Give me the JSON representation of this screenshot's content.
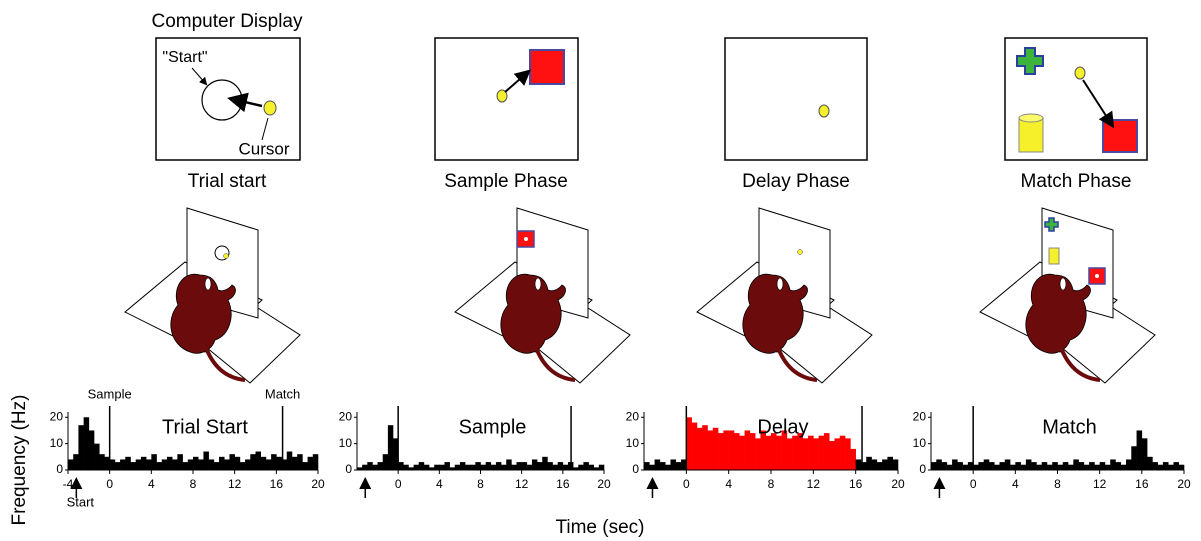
{
  "display": {
    "title": "Computer Display",
    "start_label": "\"Start\"",
    "cursor_label": "Cursor"
  },
  "panels": [
    "Trial start",
    "Sample Phase",
    "Delay Phase",
    "Match Phase"
  ],
  "axis_labels": {
    "y": "Frequency (Hz)",
    "x": "Time (sec)"
  },
  "chart_data": [
    {
      "type": "histogram",
      "title": "Trial Start",
      "color": "#000000",
      "bins": [
        -4,
        -3.5,
        -3,
        -2.5,
        -2,
        -1.5,
        -1,
        -0.5,
        0,
        0.5,
        1,
        1.5,
        2,
        2.5,
        3,
        3.5,
        4,
        4.5,
        5,
        5.5,
        6,
        6.5,
        7,
        7.5,
        8,
        8.5,
        9,
        9.5,
        10,
        10.5,
        11,
        11.5,
        12,
        12.5,
        13,
        13.5,
        14,
        14.5,
        15,
        15.5,
        16,
        16.5,
        17,
        17.5,
        18,
        18.5,
        19,
        19.5,
        20
      ],
      "values": [
        4,
        6,
        17,
        20,
        15,
        10,
        6,
        5,
        4,
        3,
        4,
        5,
        3,
        4,
        5,
        4,
        6,
        3,
        4,
        5,
        4,
        6,
        3,
        4,
        5,
        4,
        7,
        4,
        3,
        5,
        4,
        6,
        5,
        3,
        4,
        6,
        7,
        5,
        4,
        6,
        5,
        4,
        7,
        5,
        6,
        3,
        5,
        6
      ],
      "xlim": [
        -4,
        20
      ],
      "xticks": [
        -4,
        0,
        4,
        8,
        12,
        16,
        20
      ],
      "ylim": [
        0,
        22
      ],
      "yticks": [
        0,
        10,
        20
      ],
      "events": [
        {
          "name": "Start",
          "x": -3.2
        },
        {
          "name": "Sample",
          "x": 0
        },
        {
          "name": "Match",
          "x": 16.6
        }
      ]
    },
    {
      "type": "histogram",
      "title": "Sample",
      "color": "#000000",
      "bins": [
        -4,
        -3.5,
        -3,
        -2.5,
        -2,
        -1.5,
        -1,
        -0.5,
        0,
        0.5,
        1,
        1.5,
        2,
        2.5,
        3,
        3.5,
        4,
        4.5,
        5,
        5.5,
        6,
        6.5,
        7,
        7.5,
        8,
        8.5,
        9,
        9.5,
        10,
        10.5,
        11,
        11.5,
        12,
        12.5,
        13,
        13.5,
        14,
        14.5,
        15,
        15.5,
        16,
        16.5,
        17,
        17.5,
        18,
        18.5,
        19,
        19.5,
        20
      ],
      "values": [
        1,
        2,
        3,
        2,
        3,
        6,
        17,
        12,
        3,
        2,
        1,
        2,
        3,
        2,
        1,
        2,
        2,
        3,
        1,
        2,
        3,
        2,
        2,
        3,
        2,
        3,
        2,
        3,
        2,
        4,
        2,
        3,
        3,
        2,
        4,
        3,
        5,
        3,
        2,
        3,
        2,
        3,
        1,
        2,
        3,
        2,
        1,
        2
      ],
      "xlim": [
        -4,
        20
      ],
      "xticks": [
        0,
        4,
        8,
        12,
        16,
        20
      ],
      "ylim": [
        0,
        22
      ],
      "yticks": [
        0,
        10,
        20
      ],
      "events": [
        {
          "x": -3.2
        },
        {
          "x": 0
        },
        {
          "x": 16.8
        }
      ]
    },
    {
      "type": "histogram",
      "title": "Delay",
      "color": "#000000",
      "highlight_color": "#ff0000",
      "highlight_range": [
        0,
        16
      ],
      "bins": [
        -4,
        -3.5,
        -3,
        -2.5,
        -2,
        -1.5,
        -1,
        -0.5,
        0,
        0.5,
        1,
        1.5,
        2,
        2.5,
        3,
        3.5,
        4,
        4.5,
        5,
        5.5,
        6,
        6.5,
        7,
        7.5,
        8,
        8.5,
        9,
        9.5,
        10,
        10.5,
        11,
        11.5,
        12,
        12.5,
        13,
        13.5,
        14,
        14.5,
        15,
        15.5,
        16,
        16.5,
        17,
        17.5,
        18,
        18.5,
        19,
        19.5,
        20
      ],
      "values": [
        3,
        2,
        4,
        3,
        2,
        4,
        3,
        4,
        20,
        18,
        16,
        17,
        15,
        16,
        14,
        15,
        15,
        14,
        13,
        15,
        14,
        12,
        15,
        13,
        14,
        13,
        15,
        12,
        13,
        14,
        12,
        13,
        12,
        13,
        14,
        11,
        12,
        13,
        12,
        8,
        4,
        3,
        5,
        4,
        3,
        4,
        5,
        4
      ],
      "xlim": [
        -4,
        20
      ],
      "xticks": [
        0,
        4,
        8,
        12,
        16,
        20
      ],
      "ylim": [
        0,
        22
      ],
      "yticks": [
        0,
        10,
        20
      ],
      "events": [
        {
          "x": -3.2
        },
        {
          "x": 0
        },
        {
          "x": 16.6
        }
      ]
    },
    {
      "type": "histogram",
      "title": "Match",
      "color": "#000000",
      "bins": [
        -4,
        -3.5,
        -3,
        -2.5,
        -2,
        -1.5,
        -1,
        -0.5,
        0,
        0.5,
        1,
        1.5,
        2,
        2.5,
        3,
        3.5,
        4,
        4.5,
        5,
        5.5,
        6,
        6.5,
        7,
        7.5,
        8,
        8.5,
        9,
        9.5,
        10,
        10.5,
        11,
        11.5,
        12,
        12.5,
        13,
        13.5,
        14,
        14.5,
        15,
        15.5,
        16,
        16.5,
        17,
        17.5,
        18,
        18.5,
        19,
        19.5,
        20
      ],
      "values": [
        3,
        4,
        3,
        2,
        4,
        3,
        2,
        3,
        2,
        3,
        4,
        3,
        2,
        3,
        4,
        2,
        3,
        2,
        4,
        3,
        2,
        3,
        2,
        3,
        2,
        3,
        2,
        4,
        3,
        2,
        3,
        2,
        3,
        2,
        4,
        3,
        2,
        4,
        9,
        15,
        12,
        5,
        3,
        2,
        3,
        2,
        3,
        2
      ],
      "xlim": [
        -4,
        20
      ],
      "xticks": [
        0,
        4,
        8,
        12,
        16,
        20
      ],
      "ylim": [
        0,
        22
      ],
      "yticks": [
        0,
        10,
        20
      ],
      "events": [
        {
          "x": -3.2
        },
        {
          "x": 0
        }
      ]
    }
  ]
}
